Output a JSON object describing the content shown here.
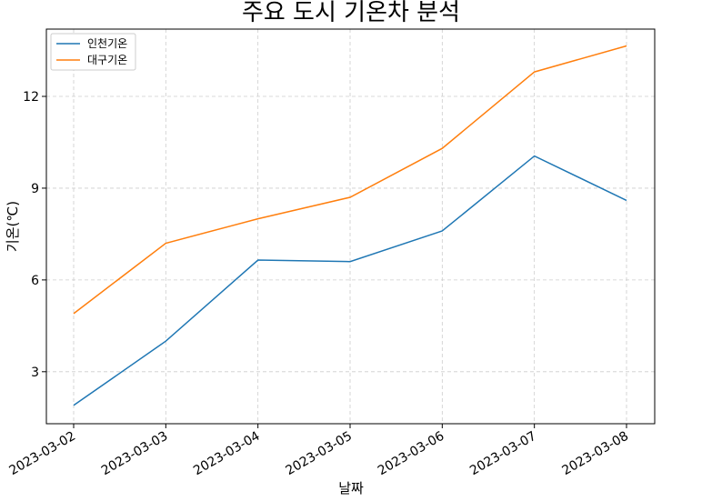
{
  "chart_data": {
    "type": "line",
    "title": "주요 도시 기온차 분석",
    "xlabel": "날짜",
    "ylabel": "기온(℃)",
    "x": [
      "2023-03-02",
      "2023-03-03",
      "2023-03-04",
      "2023-03-05",
      "2023-03-06",
      "2023-03-07",
      "2023-03-08"
    ],
    "yticks": [
      3,
      6,
      9,
      12
    ],
    "ylim": [
      1.3,
      14.2
    ],
    "grid": true,
    "legend_position": "top-left",
    "series": [
      {
        "name": "인천기온",
        "color": "#1f77b4",
        "values": [
          1.9,
          4.0,
          6.65,
          6.6,
          7.6,
          10.05,
          8.6
        ]
      },
      {
        "name": "대구기온",
        "color": "#ff7f0e",
        "values": [
          4.9,
          7.2,
          8.0,
          8.7,
          10.3,
          12.8,
          13.65
        ]
      }
    ]
  }
}
